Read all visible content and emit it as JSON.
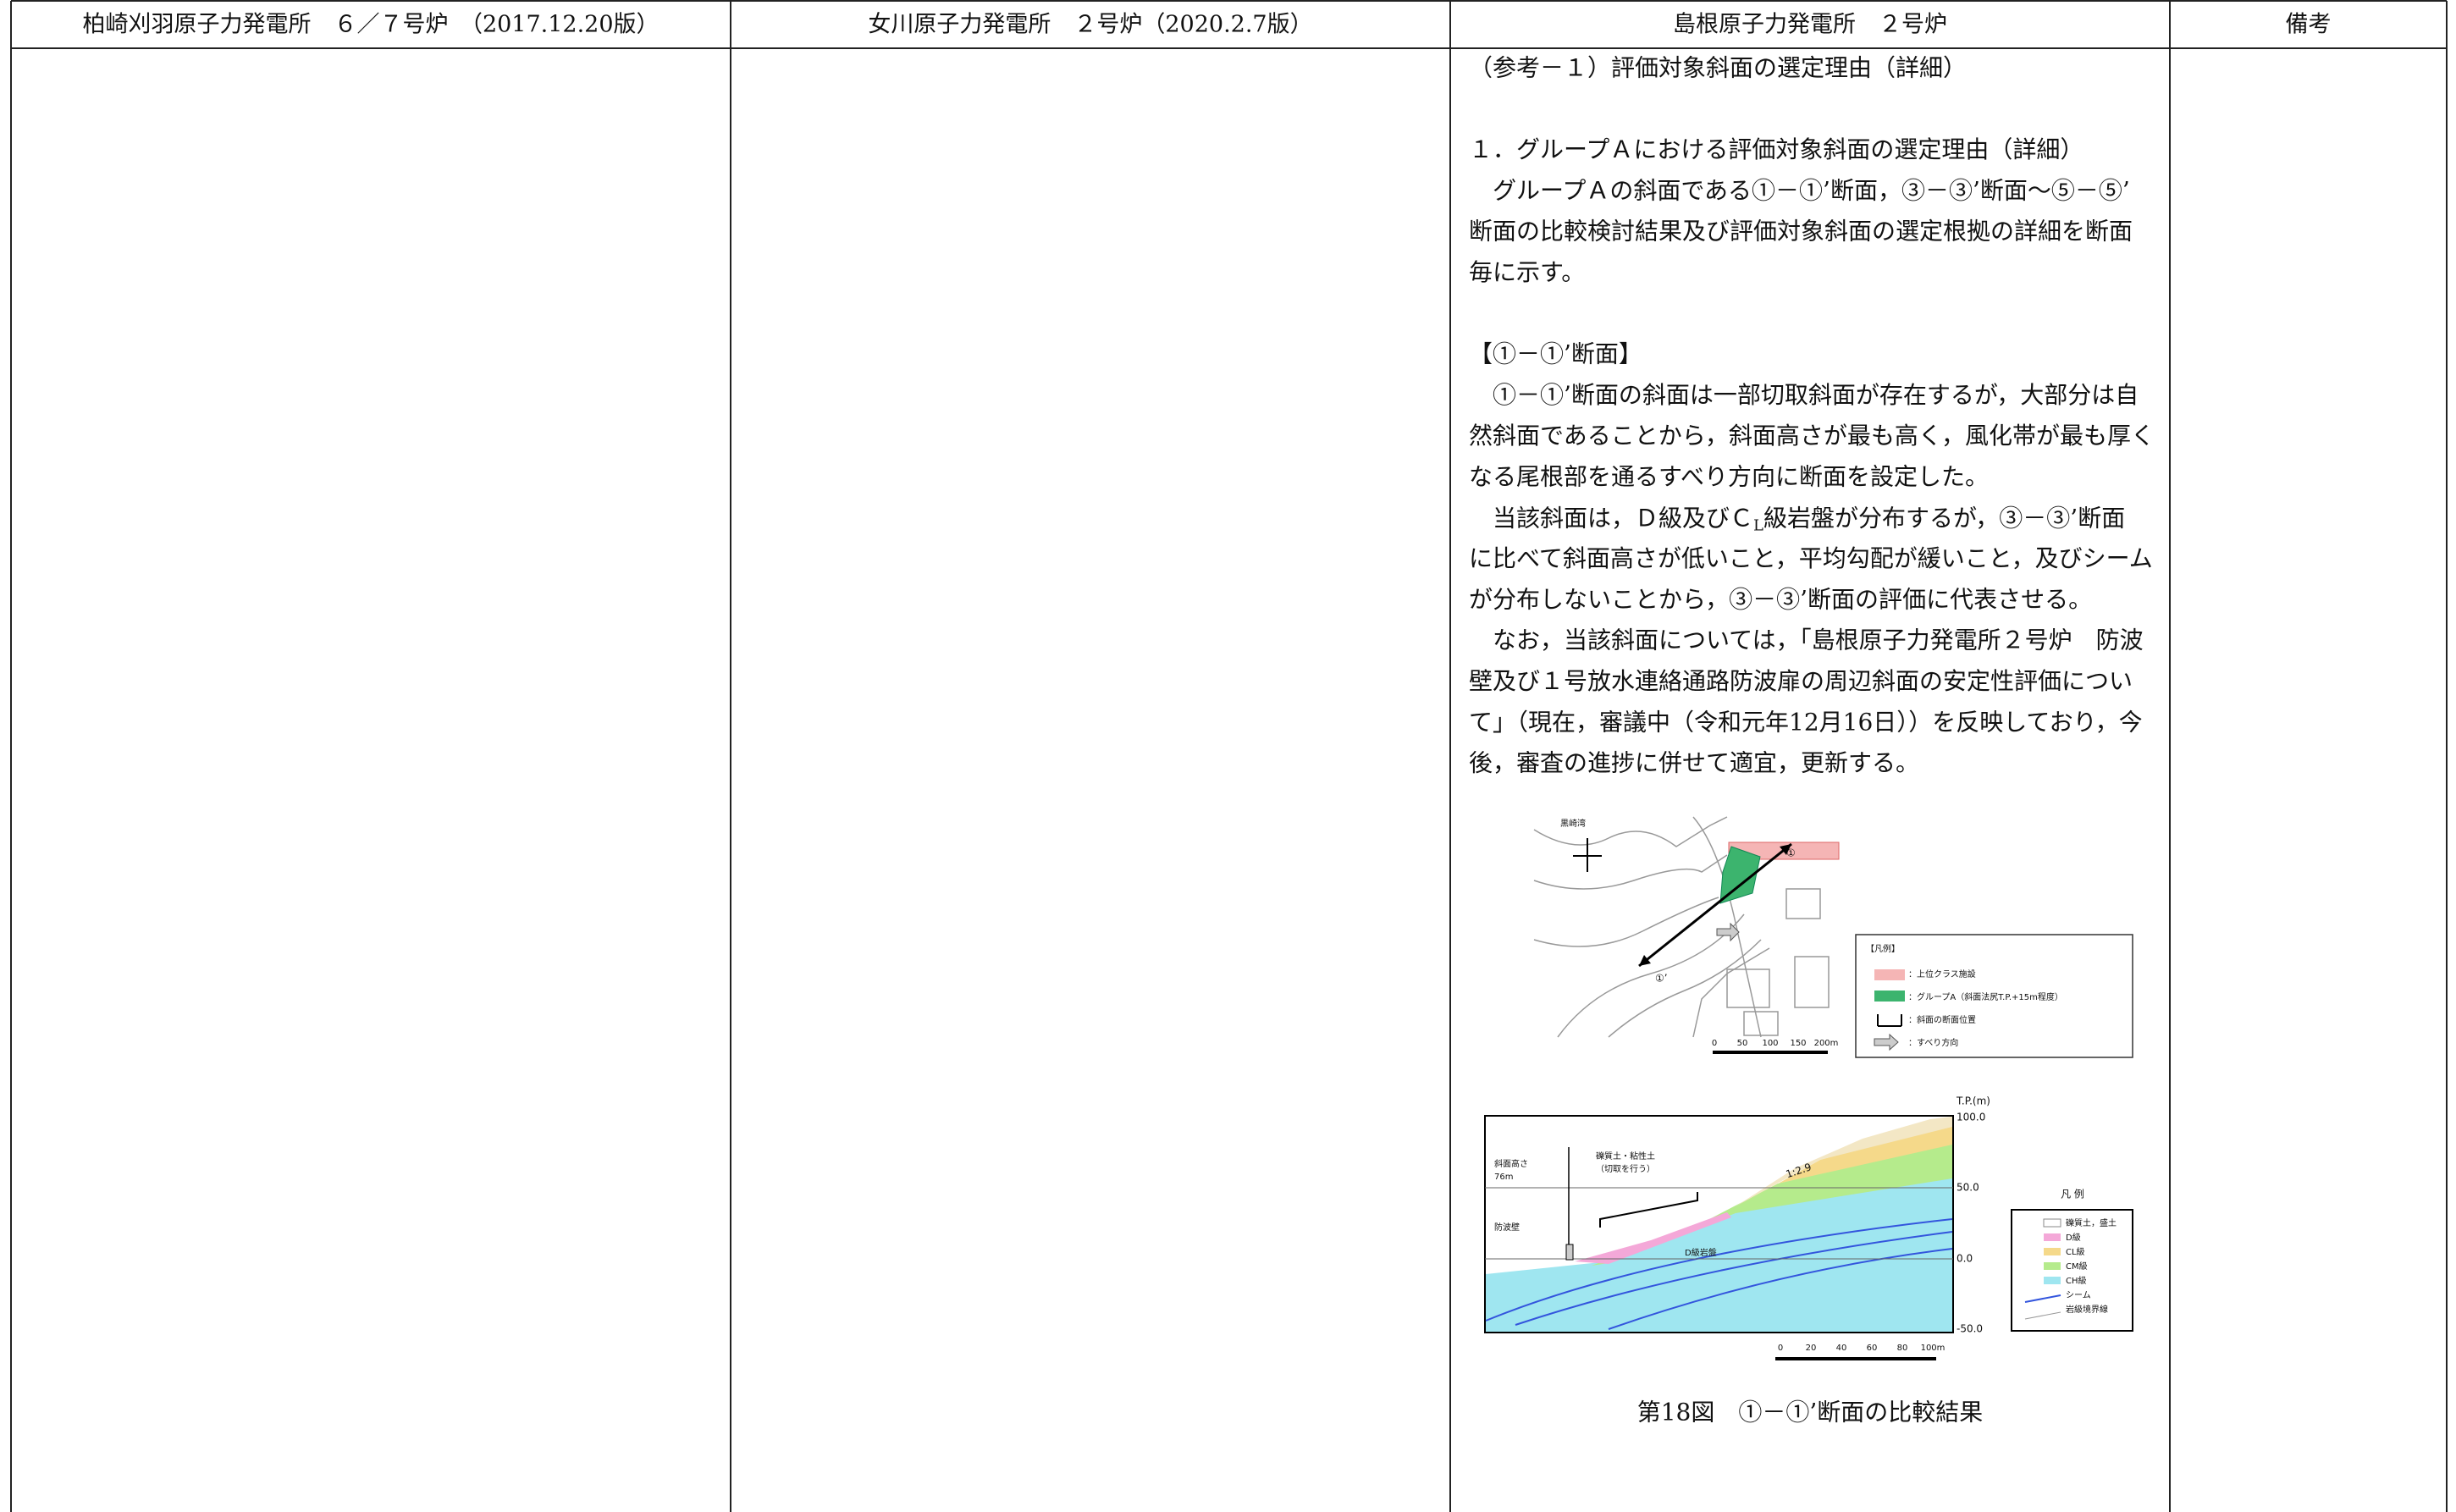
{
  "header": {
    "columns": [
      "柏崎刈羽原子力発電所　６／７号炉　（2017.12.20版）",
      "女川原子力発電所　２号炉（2020.2.7版）",
      "島根原子力発電所　２号炉",
      "備考"
    ]
  },
  "column3": {
    "title": "（参考－１）評価対象斜面の選定理由（詳細）",
    "heading": "１．グループＡにおける評価対象斜面の選定理由（詳細）",
    "intro": [
      "　グループＡの斜面である①－①’断面，③－③’断面～⑤－⑤’",
      "断面の比較検討結果及び評価対象斜面の選定根拠の詳細を断面",
      "毎に示す。"
    ],
    "section_heading": "【①－①’断面】",
    "body": [
      "　①－①’断面の斜面は一部切取斜面が存在するが，大部分は自",
      "然斜面であることから，斜面高さが最も高く，風化帯が最も厚く",
      "なる尾根部を通るすべり方向に断面を設定した。",
      {
        "segments": [
          {
            "text": "　当該斜面は，Ｄ級及びＣ",
            "sub": false
          },
          {
            "text": "L",
            "sub": true
          },
          {
            "text": "級岩盤が分布するが，③－③’断面",
            "sub": false
          }
        ]
      },
      "に比べて斜面高さが低いこと，平均勾配が緩いこと，及びシーム",
      "が分布しないことから，③－③’断面の評価に代表させる。",
      "　なお，当該斜面については，「島根原子力発電所２号炉　防波",
      "壁及び１号放水連絡通路防波扉の周辺斜面の安定性評価につい",
      "て」（現在，審議中（令和元年12月16日））を反映しており，今",
      "後，審査の進捗に併せて適宜，更新する。"
    ],
    "caption": "第18図　①－①’断面の比較結果"
  },
  "figure_map": {
    "bay": "黒崎湾",
    "point_start": "①",
    "point_end": "①’",
    "scale": [
      "0",
      "50",
      "100",
      "150",
      "200m"
    ],
    "legend_title": "【凡例】",
    "legend": [
      "：上位クラス施設",
      "：グループA（斜面法尻T.P.+15m程度）",
      "：斜面の断面位置",
      "：すべり方向"
    ]
  },
  "figure_section": {
    "axis_title": "T.P.(m)",
    "elevations": [
      "100.0",
      "50.0",
      "0.0",
      "-50.0"
    ],
    "height_label": [
      "斜面高さ",
      "76m"
    ],
    "soil_label": [
      "礫質土・粘性土",
      "（切取を行う）"
    ],
    "gradient": "1:2.9",
    "wall": "防波壁",
    "rock": "D級岩盤",
    "scale": [
      "0",
      "20",
      "40",
      "60",
      "80",
      "100m"
    ],
    "legend_title": "凡 例",
    "legend": [
      "礫質土，盛土",
      "D級",
      "CL級",
      "CM級",
      "CH級",
      "シーム",
      "岩級境界線"
    ]
  }
}
